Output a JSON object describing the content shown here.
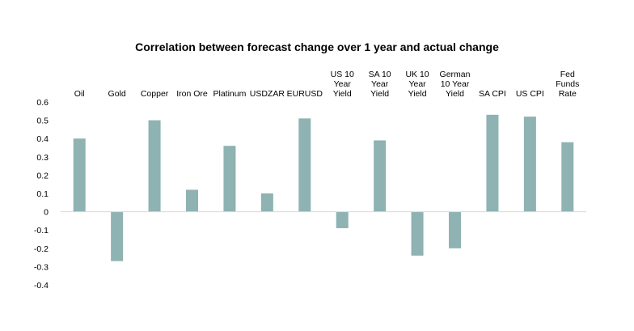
{
  "chart_data": {
    "type": "bar",
    "title": "Correlation between forecast change over 1 year and actual change",
    "categories": [
      "Oil",
      "Gold",
      "Copper",
      "Iron Ore",
      "Platinum",
      "USDZAR",
      "EURUSD",
      "US 10 Year Yield",
      "SA 10 Year Yield",
      "UK 10 Year Yield",
      "German 10 Year Yield",
      "SA CPI",
      "US CPI",
      "Fed Funds Rate"
    ],
    "category_lines": [
      [
        "Oil"
      ],
      [
        "Gold"
      ],
      [
        "Copper"
      ],
      [
        "Iron Ore"
      ],
      [
        "Platinum"
      ],
      [
        "USDZAR"
      ],
      [
        "EURUSD"
      ],
      [
        "US 10",
        "Year",
        "Yield"
      ],
      [
        "SA 10",
        "Year",
        "Yield"
      ],
      [
        "UK 10",
        "Year",
        "Yield"
      ],
      [
        "German",
        "10 Year",
        "Yield"
      ],
      [
        "SA CPI"
      ],
      [
        "US CPI"
      ],
      [
        "Fed",
        "Funds",
        "Rate"
      ]
    ],
    "values": [
      0.4,
      -0.27,
      0.5,
      0.12,
      0.36,
      0.1,
      0.51,
      -0.09,
      0.39,
      -0.24,
      -0.2,
      0.53,
      0.52,
      0.38
    ],
    "ylim": [
      -0.4,
      0.6
    ],
    "yticks": [
      "0.6",
      "0.5",
      "0.4",
      "0.3",
      "0.2",
      "0.1",
      "0",
      "-0.1",
      "-0.2",
      "-0.3",
      "-0.4"
    ],
    "xlabel": "",
    "ylabel": "",
    "grid": false,
    "legend": "none",
    "bar_color": "#8fb2b2",
    "axis_color": "#d9d9d9"
  }
}
